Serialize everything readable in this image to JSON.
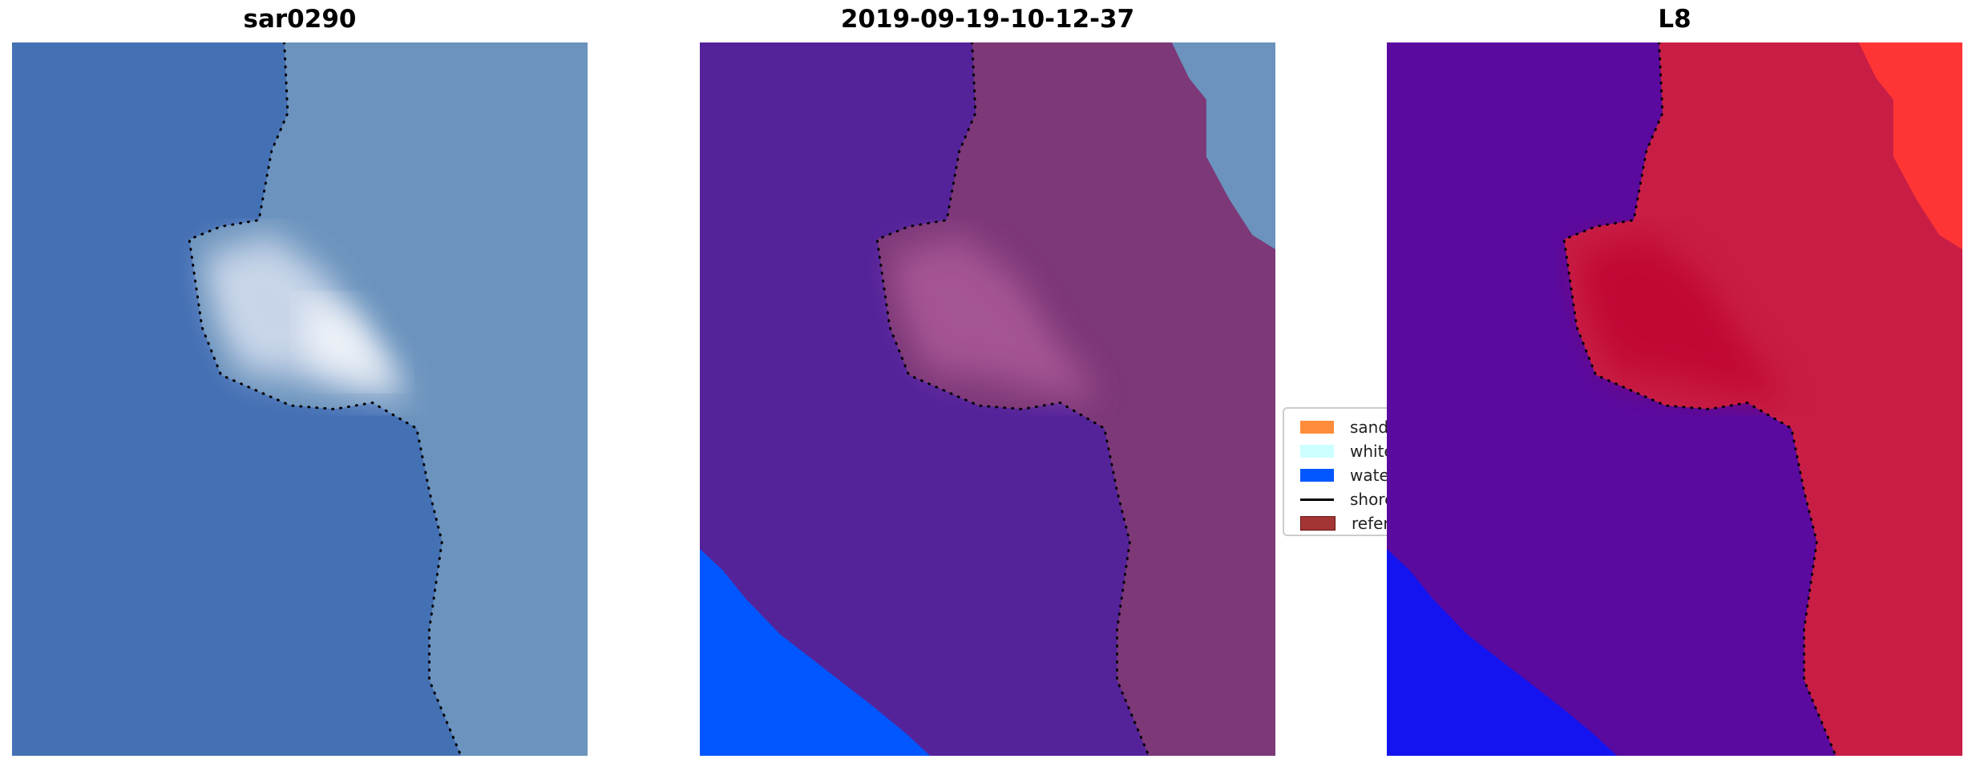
{
  "chart_data": {
    "type": "image",
    "panels": [
      {
        "title": "sar0290",
        "water_color": "#4470b4",
        "land_color": "#6b93bd",
        "highlight_color": "#e8ecf8",
        "corner_color": null,
        "sea_color": null
      },
      {
        "title": "2019-09-19-10-12-37",
        "water_color": "#54239a",
        "land_color": "#7d3878",
        "highlight_color": "#b25d9c",
        "corner_color": "#6b93bd",
        "sea_color": "#0057ff"
      },
      {
        "title": "L8",
        "water_color": "#5a0a9e",
        "land_color": "#c81e45",
        "highlight_color": "#c0002e",
        "corner_color": "#ff3535",
        "sea_color": "#1414f0"
      }
    ],
    "legend": {
      "placement": "center-right",
      "items": [
        {
          "label": "sand",
          "color": "#ff8c3a",
          "kind": "patch"
        },
        {
          "label": "whitew",
          "color": "#ccffff",
          "kind": "patch"
        },
        {
          "label": "water",
          "color": "#0057ff",
          "kind": "patch"
        },
        {
          "label": "shoreli",
          "color": "#000000",
          "kind": "line"
        },
        {
          "label": "referen",
          "color": "#a33535",
          "kind": "patch"
        }
      ]
    }
  }
}
